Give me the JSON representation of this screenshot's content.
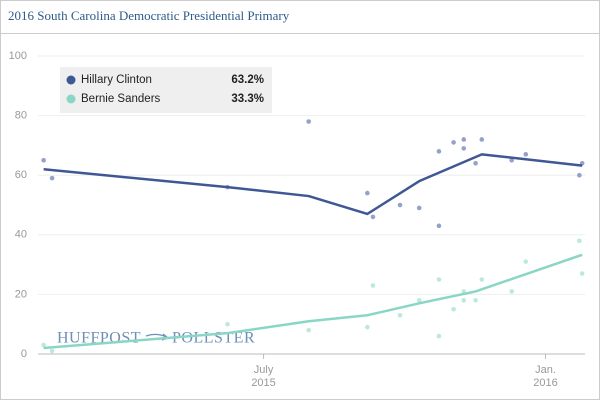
{
  "chart_data": {
    "type": "scatter",
    "title": "2016 South Carolina Democratic Presidential Primary",
    "watermark": [
      "HUFFPOST",
      "POLLSTER"
    ],
    "xlim": [
      2015.1,
      2016.07
    ],
    "xticks": [
      {
        "value": 2015.5,
        "label": "July",
        "year": "2015"
      },
      {
        "value": 2016,
        "label": "Jan.",
        "year": "2016"
      }
    ],
    "ylim": [
      0,
      100
    ],
    "yticks": [
      0,
      20,
      40,
      60,
      80,
      100
    ],
    "grid": true,
    "legend": "top-left",
    "series": [
      {
        "name": "Hillary Clinton",
        "color": "#3f5794",
        "point_color": "#94a1c8",
        "latest": 63.2,
        "latest_label": "63.2%",
        "x": [
          2015.11,
          2015.125,
          2015.436,
          2015.58,
          2015.684,
          2015.694,
          2015.742,
          2015.776,
          2015.811,
          2015.811,
          2015.837,
          2015.855,
          2015.855,
          2015.876,
          2015.887,
          2015.94,
          2015.965,
          2016.06,
          2016.065
        ],
        "values": [
          65,
          59,
          56,
          78,
          54,
          46,
          50,
          49,
          68,
          43,
          71,
          72,
          69,
          64,
          72,
          65,
          67,
          60,
          64
        ],
        "trend_x": [
          2015.11,
          2015.436,
          2015.58,
          2015.684,
          2015.776,
          2015.887,
          2016.065
        ],
        "trend_values": [
          62,
          56,
          53,
          47,
          58,
          67,
          63.2
        ]
      },
      {
        "name": "Bernie Sanders",
        "color": "#8ad6c6",
        "point_color": "#bce8de",
        "latest": 33.3,
        "latest_label": "33.3%",
        "x": [
          2015.11,
          2015.125,
          2015.436,
          2015.58,
          2015.684,
          2015.694,
          2015.742,
          2015.776,
          2015.811,
          2015.811,
          2015.837,
          2015.855,
          2015.855,
          2015.876,
          2015.887,
          2015.94,
          2015.965,
          2016.06,
          2016.065
        ],
        "values": [
          3,
          1,
          10,
          8,
          9,
          23,
          13,
          18,
          6,
          25,
          15,
          18,
          21,
          18,
          25,
          21,
          31,
          38,
          27
        ],
        "trend_x": [
          2015.11,
          2015.436,
          2015.58,
          2015.684,
          2015.776,
          2015.876,
          2016.065
        ],
        "trend_values": [
          2,
          7,
          11,
          13,
          17,
          21,
          33.3
        ]
      }
    ]
  }
}
